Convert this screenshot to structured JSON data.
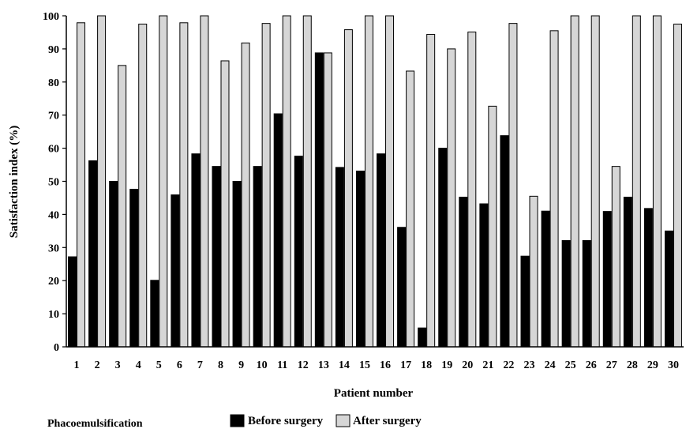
{
  "caption": "Phacoemulsification",
  "chart_data": {
    "type": "bar",
    "title": "",
    "xlabel": "Patient number",
    "ylabel": "Satisfaction index (%)",
    "ylim": [
      0,
      100
    ],
    "yticks": [
      0,
      10,
      20,
      30,
      40,
      50,
      60,
      70,
      80,
      90,
      100
    ],
    "categories": [
      "1",
      "2",
      "3",
      "4",
      "5",
      "6",
      "7",
      "8",
      "9",
      "10",
      "11",
      "12",
      "13",
      "14",
      "15",
      "16",
      "17",
      "18",
      "19",
      "20",
      "21",
      "22",
      "23",
      "24",
      "25",
      "26",
      "27",
      "28",
      "29",
      "30"
    ],
    "series": [
      {
        "name": "Before surgery",
        "color": "#000000",
        "values": [
          27.2,
          56.2,
          50.0,
          47.6,
          20.1,
          45.9,
          58.3,
          54.5,
          50.0,
          54.5,
          70.4,
          57.6,
          88.8,
          54.2,
          53.1,
          58.3,
          36.1,
          5.7,
          60.0,
          45.2,
          43.2,
          63.8,
          27.4,
          41.0,
          32.1,
          32.1,
          40.9,
          45.2,
          41.8,
          35.0
        ]
      },
      {
        "name": "After surgery",
        "color": "#d6d6d6",
        "values": [
          97.9,
          100,
          85.0,
          97.5,
          100,
          97.9,
          100,
          86.4,
          91.8,
          97.7,
          100,
          100,
          88.8,
          95.8,
          100,
          100,
          83.3,
          94.4,
          90.0,
          95.1,
          72.7,
          97.7,
          45.5,
          95.5,
          100,
          100,
          54.5,
          100,
          100,
          97.5
        ]
      }
    ],
    "legend_position": "bottom",
    "grid": false
  }
}
